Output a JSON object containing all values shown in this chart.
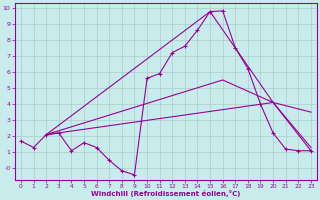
{
  "xlabel": "Windchill (Refroidissement éolien,°C)",
  "background_color": "#c8ecec",
  "grid_color": "#aacccc",
  "line_color": "#990099",
  "xlim": [
    -0.5,
    23.5
  ],
  "ylim": [
    -0.7,
    10.3
  ],
  "xticks": [
    0,
    1,
    2,
    3,
    4,
    5,
    6,
    7,
    8,
    9,
    10,
    11,
    12,
    13,
    14,
    15,
    16,
    17,
    18,
    19,
    20,
    21,
    22,
    23
  ],
  "yticks": [
    0,
    1,
    2,
    3,
    4,
    5,
    6,
    7,
    8,
    9,
    10
  ],
  "ytick_labels": [
    "-0",
    "1",
    "2",
    "3",
    "4",
    "5",
    "6",
    "7",
    "8",
    "9",
    "10"
  ],
  "line1_x": [
    0,
    1,
    2,
    3,
    4,
    5,
    6,
    7,
    8,
    9,
    10,
    11,
    12,
    13,
    14,
    15,
    16,
    17,
    18,
    19,
    20,
    21,
    22,
    23
  ],
  "line1_y": [
    1.7,
    1.3,
    2.1,
    2.2,
    1.1,
    1.6,
    1.3,
    0.5,
    -0.15,
    -0.4,
    5.6,
    5.9,
    7.2,
    7.6,
    8.6,
    9.75,
    9.8,
    7.5,
    6.2,
    4.0,
    2.2,
    1.2,
    1.1,
    1.1
  ],
  "line2_x": [
    2,
    16,
    20,
    23
  ],
  "line2_y": [
    2.1,
    5.5,
    4.1,
    1.1
  ],
  "line3_x": [
    2,
    15,
    20,
    23
  ],
  "line3_y": [
    2.1,
    9.75,
    4.1,
    1.3
  ],
  "line4_x": [
    2,
    20,
    23
  ],
  "line4_y": [
    2.1,
    4.1,
    3.5
  ]
}
